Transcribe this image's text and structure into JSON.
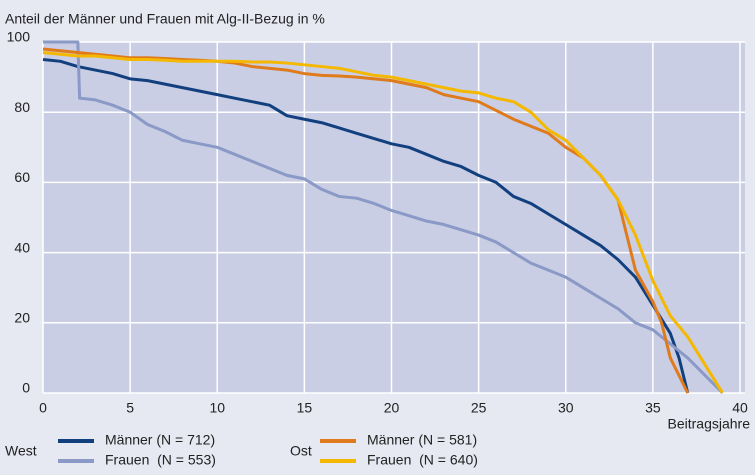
{
  "chart_data": {
    "type": "line",
    "title": "Anteil der Männer und Frauen mit Alg-II-Bezug in %",
    "x_label": "Beitragsjahre",
    "xlim": [
      0,
      40
    ],
    "xticks": [
      0,
      5,
      10,
      15,
      20,
      25,
      30,
      35,
      40
    ],
    "ylim": [
      0,
      100
    ],
    "yticks": [
      0,
      20,
      40,
      60,
      80,
      100
    ],
    "grid": true,
    "legend_groups": [
      "West",
      "Ost"
    ],
    "series": [
      {
        "name": "Männer (N = 712)",
        "color": "#12407f",
        "x": [
          0,
          1,
          2,
          3,
          4,
          5,
          6,
          7,
          8,
          9,
          10,
          11,
          12,
          13,
          14,
          15,
          16,
          17,
          18,
          19,
          20,
          21,
          22,
          23,
          24,
          25,
          26,
          27,
          28,
          29,
          30,
          31,
          32,
          33,
          34,
          35,
          36,
          36.5,
          37
        ],
        "values": [
          95,
          94.5,
          93,
          92,
          91,
          89.5,
          89,
          88,
          87,
          86,
          85,
          84,
          83,
          82,
          79,
          78,
          77,
          75.5,
          74,
          72.5,
          71,
          70,
          68,
          66,
          64.5,
          62,
          60,
          56,
          54,
          51,
          48,
          45,
          42,
          38,
          33,
          25,
          17,
          10,
          0
        ]
      },
      {
        "name": "Frauen  (N = 553)",
        "color": "#8a99c6",
        "x": [
          0,
          2,
          2.1,
          3,
          4,
          5,
          6,
          7,
          8,
          9,
          10,
          11,
          12,
          13,
          14,
          15,
          16,
          17,
          18,
          19,
          20,
          21,
          22,
          23,
          24,
          25,
          26,
          27,
          28,
          29,
          30,
          31,
          32,
          33,
          34,
          35,
          36,
          37,
          38,
          39
        ],
        "values": [
          100,
          100,
          84,
          83.5,
          82,
          80,
          76.5,
          74.5,
          72,
          71,
          70,
          68,
          66,
          64,
          62,
          61,
          58,
          56,
          55.5,
          54,
          52,
          50.5,
          49,
          48,
          46.5,
          45,
          43,
          40,
          37,
          35,
          33,
          30,
          27,
          24,
          20,
          18,
          14,
          10,
          5,
          0
        ]
      },
      {
        "name": "Männer (N = 581)",
        "color": "#e07b1c",
        "x": [
          0,
          1,
          2,
          3,
          4,
          5,
          6,
          7,
          8,
          9,
          10,
          11,
          12,
          13,
          14,
          15,
          16,
          17,
          18,
          19,
          20,
          21,
          22,
          23,
          24,
          25,
          26,
          27,
          28,
          29,
          30,
          31,
          32,
          33,
          33.5,
          34,
          35,
          35.5,
          36,
          37
        ],
        "values": [
          98,
          97.5,
          97,
          96.5,
          96,
          95.5,
          95.5,
          95.3,
          95,
          94.8,
          94.5,
          94,
          93,
          92.5,
          92,
          91,
          90.5,
          90.3,
          90,
          89.5,
          89,
          88,
          87,
          85,
          84,
          83,
          80.5,
          78,
          76,
          74,
          70,
          67,
          62,
          55,
          45,
          35,
          26,
          20,
          10,
          0
        ]
      },
      {
        "name": "Frauen  (N = 640)",
        "color": "#f5b800",
        "x": [
          0,
          1,
          2,
          3,
          4,
          5,
          6,
          7,
          8,
          9,
          10,
          11,
          12,
          13,
          14,
          15,
          16,
          17,
          18,
          19,
          20,
          21,
          22,
          23,
          24,
          25,
          26,
          27,
          28,
          29,
          30,
          31,
          32,
          33,
          34,
          35,
          36,
          37,
          38,
          39
        ],
        "values": [
          97,
          96.5,
          96,
          96,
          95.5,
          95,
          95,
          94.8,
          94.5,
          94.5,
          94.5,
          94.5,
          94.3,
          94.3,
          94,
          93.5,
          93,
          92.5,
          91.5,
          90.5,
          90,
          89,
          88,
          87,
          86,
          85.5,
          84,
          83,
          80,
          75,
          72,
          67,
          62,
          55,
          45,
          32,
          22,
          16,
          8,
          0
        ]
      }
    ]
  }
}
